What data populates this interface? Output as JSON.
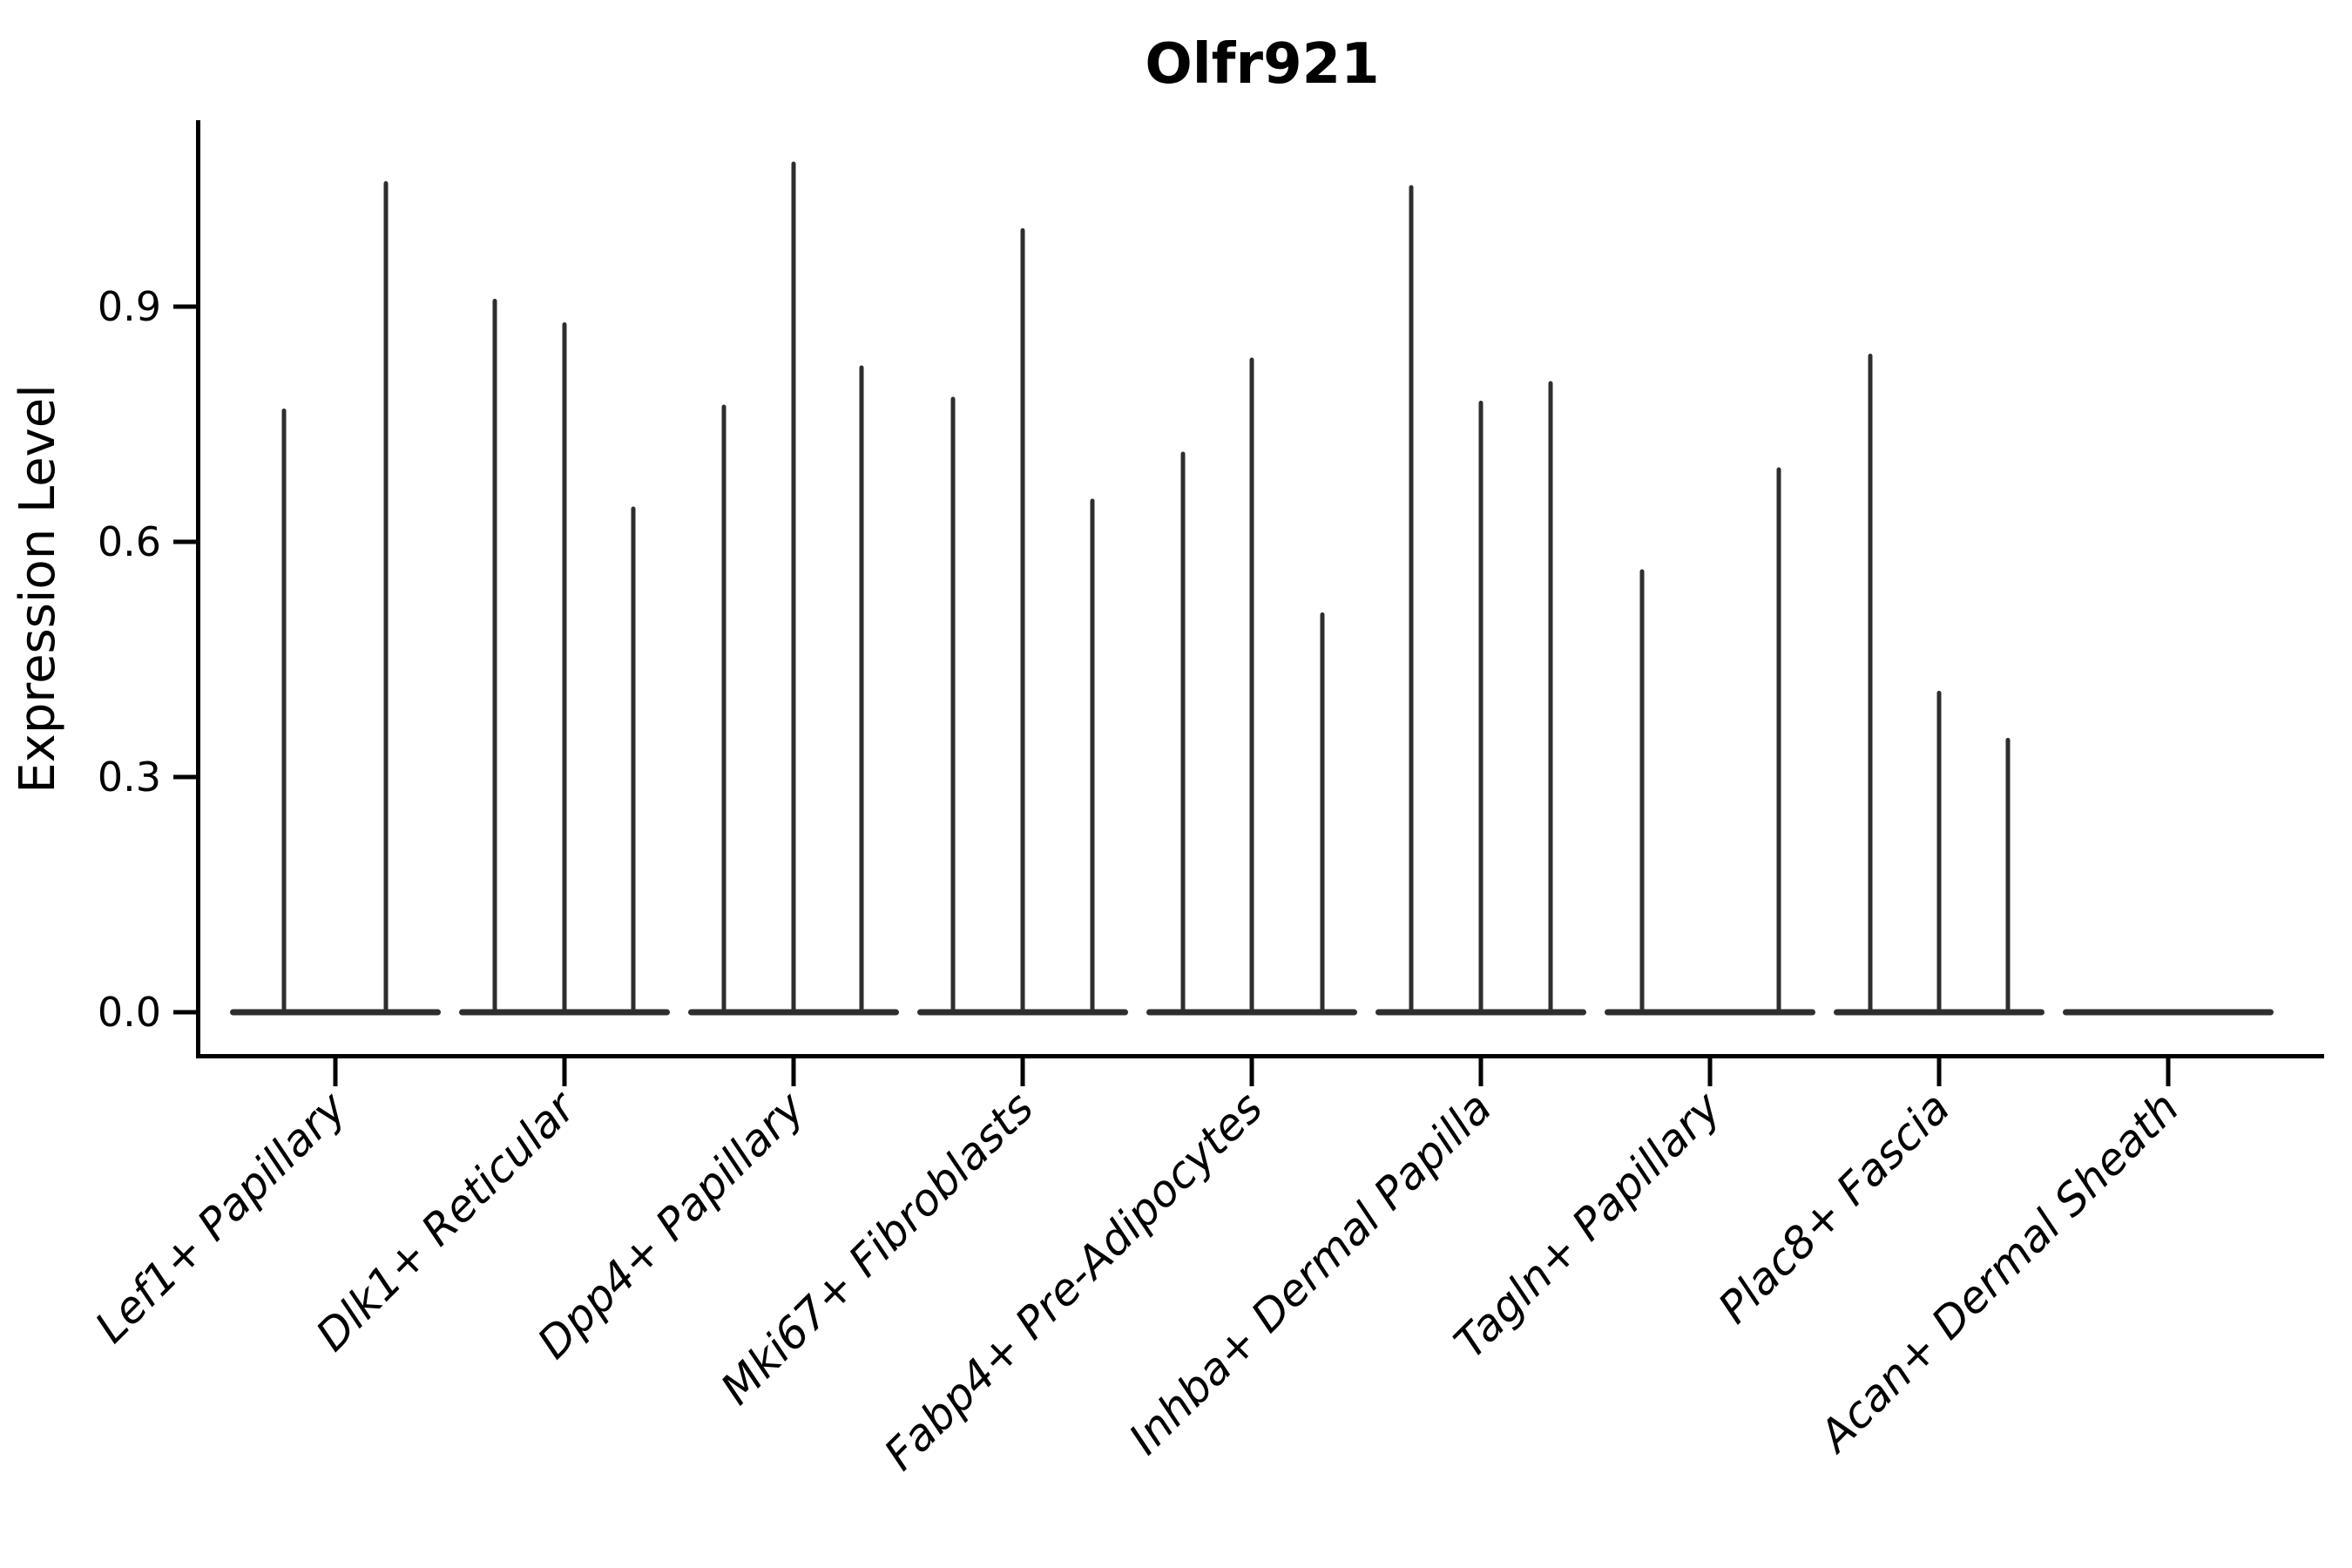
{
  "style": {
    "background": "#ffffff",
    "violin_color": "#2e2e2e",
    "axis_color": "#000000",
    "text_color": "#000000"
  },
  "chart_data": {
    "type": "violin",
    "title": "Olfr921",
    "xlabel": "",
    "ylabel": "Expression Level",
    "grid": false,
    "legend": false,
    "ylim": [
      -0.05,
      1.15
    ],
    "ytick_values": [
      0.0,
      0.3,
      0.6,
      0.9
    ],
    "ytick_labels": [
      "0.0",
      "0.3",
      "0.6",
      "0.9"
    ],
    "categories": [
      "Lef1+ Papillary",
      "Dlk1+ Reticular",
      "Dpp4+ Papillary",
      "Mki67+ Fibroblasts",
      "Fabp4+ Pre-Adipocytes",
      "Inhba+ Dermal Papilla",
      "Tagln+ Papillary",
      "Plac8+ Fascia",
      "Acan+ Dermal Sheath"
    ],
    "violins": [
      {
        "category": "Lef1+ Papillary",
        "zero_mass": true,
        "spikes": [
          {
            "dx": -59,
            "peak": 0.77
          },
          {
            "dx": 58,
            "peak": 1.06
          }
        ]
      },
      {
        "category": "Dlk1+ Reticular",
        "zero_mass": true,
        "spikes": [
          {
            "dx": -80,
            "peak": 0.91
          },
          {
            "dx": 0,
            "peak": 0.88
          },
          {
            "dx": 79,
            "peak": 0.645
          }
        ]
      },
      {
        "category": "Dpp4+ Papillary",
        "zero_mass": true,
        "spikes": [
          {
            "dx": -80,
            "peak": 0.775
          },
          {
            "dx": 0,
            "peak": 1.085
          },
          {
            "dx": 78,
            "peak": 0.825
          }
        ]
      },
      {
        "category": "Mki67+ Fibroblasts",
        "zero_mass": true,
        "spikes": [
          {
            "dx": -80,
            "peak": 0.785
          },
          {
            "dx": 0,
            "peak": 1.0
          },
          {
            "dx": 80,
            "peak": 0.655
          }
        ]
      },
      {
        "category": "Fabp4+ Pre-Adipocytes",
        "zero_mass": true,
        "spikes": [
          {
            "dx": -79,
            "peak": 0.715
          },
          {
            "dx": 0,
            "peak": 0.835
          },
          {
            "dx": 81,
            "peak": 0.51
          }
        ]
      },
      {
        "category": "Inhba+ Dermal Papilla",
        "zero_mass": true,
        "spikes": [
          {
            "dx": -80,
            "peak": 1.055
          },
          {
            "dx": 0,
            "peak": 0.78
          },
          {
            "dx": 80,
            "peak": 0.805
          }
        ]
      },
      {
        "category": "Tagln+ Papillary",
        "zero_mass": true,
        "spikes": [
          {
            "dx": -78,
            "peak": 0.565
          },
          {
            "dx": 79,
            "peak": 0.695
          }
        ]
      },
      {
        "category": "Plac8+ Fascia",
        "zero_mass": true,
        "spikes": [
          {
            "dx": -79,
            "peak": 0.84
          },
          {
            "dx": 0,
            "peak": 0.41
          },
          {
            "dx": 79,
            "peak": 0.35
          }
        ]
      },
      {
        "category": "Acan+ Dermal Sheath",
        "zero_mass": true,
        "spikes": []
      }
    ]
  }
}
